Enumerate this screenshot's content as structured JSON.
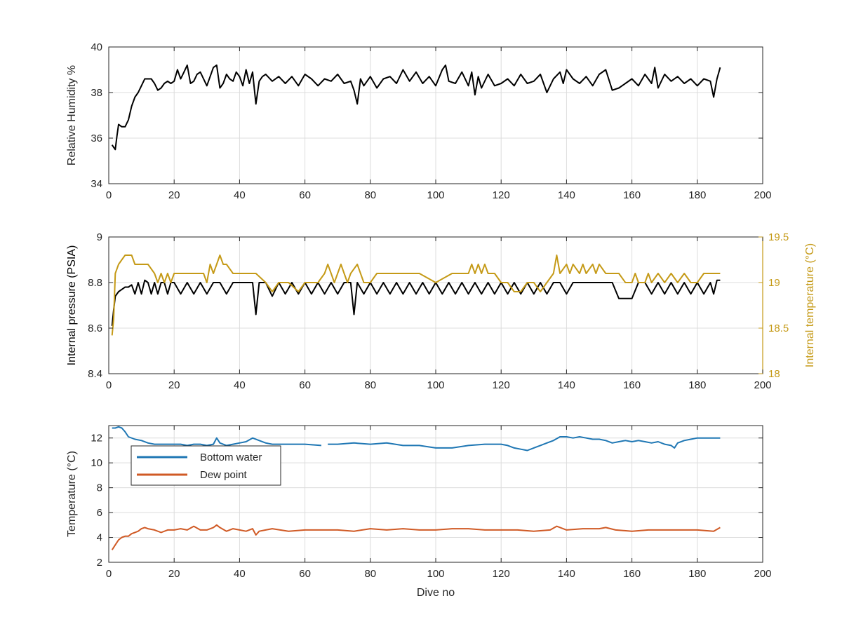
{
  "colors": {
    "black": "#000000",
    "gold": "#c59a17",
    "blue": "#1f77b4",
    "orange": "#d05a25",
    "grid": "#dcdcdc",
    "axis": "#262626"
  },
  "chart_data": [
    {
      "type": "line",
      "xlabel": "",
      "ylabel": "Relative Humidity %",
      "xlim": [
        0,
        200
      ],
      "ylim": [
        34,
        40
      ],
      "xticks": [
        0,
        20,
        40,
        60,
        80,
        100,
        120,
        140,
        160,
        180,
        200
      ],
      "yticks": [
        34,
        36,
        38,
        40
      ],
      "grid": true,
      "series": [
        {
          "color": "#000000",
          "x": [
            1,
            1.5,
            2,
            2.5,
            3,
            4,
            5,
            6,
            7,
            8,
            9,
            10,
            11,
            12,
            13,
            14,
            15,
            16,
            17,
            18,
            19,
            20,
            21,
            22,
            23,
            24,
            25,
            26,
            27,
            28,
            29,
            30,
            31,
            32,
            33,
            34,
            35,
            36,
            37,
            38,
            39,
            40,
            41,
            42,
            43,
            44,
            45,
            46,
            47,
            48,
            50,
            52,
            54,
            56,
            58,
            60,
            62,
            64,
            66,
            68,
            70,
            72,
            74,
            75,
            76,
            77,
            78,
            80,
            82,
            84,
            86,
            88,
            90,
            92,
            94,
            96,
            98,
            100,
            102,
            103,
            104,
            106,
            108,
            110,
            111,
            112,
            113,
            114,
            116,
            118,
            120,
            122,
            124,
            126,
            128,
            130,
            132,
            134,
            136,
            138,
            139,
            140,
            142,
            144,
            146,
            148,
            150,
            152,
            154,
            156,
            158,
            160,
            162,
            164,
            166,
            167,
            168,
            170,
            172,
            174,
            176,
            178,
            180,
            182,
            184,
            185,
            186,
            187
          ],
          "y": [
            35.7,
            35.6,
            35.5,
            36.1,
            36.6,
            36.5,
            36.5,
            36.8,
            37.4,
            37.8,
            38.0,
            38.3,
            38.6,
            38.6,
            38.6,
            38.4,
            38.1,
            38.2,
            38.4,
            38.5,
            38.4,
            38.5,
            39.0,
            38.6,
            38.9,
            39.2,
            38.4,
            38.5,
            38.8,
            38.9,
            38.6,
            38.3,
            38.7,
            39.1,
            39.2,
            38.2,
            38.4,
            38.8,
            38.6,
            38.5,
            38.9,
            38.7,
            38.3,
            39.0,
            38.4,
            38.9,
            37.5,
            38.5,
            38.7,
            38.8,
            38.5,
            38.7,
            38.4,
            38.7,
            38.3,
            38.8,
            38.6,
            38.3,
            38.6,
            38.5,
            38.8,
            38.4,
            38.5,
            38.1,
            37.5,
            38.6,
            38.3,
            38.7,
            38.2,
            38.6,
            38.7,
            38.4,
            39.0,
            38.5,
            38.9,
            38.4,
            38.7,
            38.3,
            39.0,
            39.2,
            38.5,
            38.4,
            38.9,
            38.3,
            38.9,
            37.9,
            38.7,
            38.2,
            38.8,
            38.3,
            38.4,
            38.6,
            38.3,
            38.8,
            38.4,
            38.5,
            38.8,
            38.0,
            38.6,
            38.9,
            38.4,
            39.0,
            38.6,
            38.4,
            38.7,
            38.3,
            38.8,
            39.0,
            38.1,
            38.2,
            38.4,
            38.6,
            38.3,
            38.8,
            38.4,
            39.1,
            38.2,
            38.8,
            38.5,
            38.7,
            38.4,
            38.6,
            38.3,
            38.6,
            38.5,
            37.8,
            38.6,
            39.1
          ]
        }
      ]
    },
    {
      "type": "line",
      "xlabel": "",
      "ylabel": "Internal pressure (PSIA)",
      "ylabel_right": "Internal temperature (°C)",
      "xlim": [
        0,
        200
      ],
      "ylim": [
        8.4,
        9
      ],
      "ylim_right": [
        18,
        19.5
      ],
      "xticks": [
        0,
        20,
        40,
        60,
        80,
        100,
        120,
        140,
        160,
        180,
        200
      ],
      "yticks": [
        8.4,
        8.6,
        8.8,
        9
      ],
      "yticks_right": [
        18,
        18.5,
        19,
        19.5
      ],
      "grid": true,
      "series": [
        {
          "axis": "left",
          "color": "#000000",
          "x": [
            1,
            1.5,
            2,
            3,
            4,
            5,
            6,
            7,
            8,
            9,
            10,
            11,
            12,
            13,
            14,
            15,
            16,
            17,
            18,
            19,
            20,
            22,
            24,
            26,
            28,
            30,
            32,
            34,
            36,
            38,
            40,
            42,
            44,
            45,
            46,
            48,
            50,
            52,
            54,
            56,
            58,
            60,
            62,
            64,
            66,
            68,
            70,
            72,
            74,
            75,
            76,
            78,
            80,
            82,
            84,
            86,
            88,
            90,
            92,
            94,
            96,
            98,
            100,
            102,
            104,
            106,
            108,
            110,
            112,
            114,
            116,
            118,
            120,
            122,
            124,
            126,
            128,
            130,
            132,
            134,
            136,
            138,
            140,
            142,
            144,
            146,
            148,
            150,
            152,
            154,
            156,
            158,
            160,
            162,
            164,
            166,
            168,
            170,
            172,
            174,
            176,
            178,
            180,
            182,
            184,
            185,
            186,
            187
          ],
          "y": [
            8.61,
            8.68,
            8.74,
            8.76,
            8.77,
            8.78,
            8.78,
            8.79,
            8.75,
            8.8,
            8.75,
            8.81,
            8.8,
            8.75,
            8.8,
            8.75,
            8.8,
            8.8,
            8.75,
            8.8,
            8.8,
            8.75,
            8.8,
            8.75,
            8.8,
            8.75,
            8.8,
            8.8,
            8.75,
            8.8,
            8.8,
            8.8,
            8.8,
            8.66,
            8.8,
            8.8,
            8.74,
            8.8,
            8.75,
            8.8,
            8.75,
            8.8,
            8.75,
            8.8,
            8.75,
            8.8,
            8.75,
            8.8,
            8.8,
            8.66,
            8.8,
            8.75,
            8.8,
            8.75,
            8.8,
            8.75,
            8.8,
            8.75,
            8.8,
            8.75,
            8.8,
            8.75,
            8.8,
            8.75,
            8.8,
            8.75,
            8.8,
            8.75,
            8.8,
            8.75,
            8.8,
            8.75,
            8.8,
            8.75,
            8.8,
            8.75,
            8.8,
            8.75,
            8.8,
            8.75,
            8.8,
            8.8,
            8.75,
            8.8,
            8.8,
            8.8,
            8.8,
            8.8,
            8.8,
            8.8,
            8.73,
            8.73,
            8.73,
            8.8,
            8.8,
            8.75,
            8.8,
            8.75,
            8.8,
            8.75,
            8.8,
            8.75,
            8.8,
            8.75,
            8.8,
            8.75,
            8.81,
            8.81
          ]
        },
        {
          "axis": "right",
          "color": "#c59a17",
          "x": [
            1,
            1.5,
            2,
            3,
            4,
            5,
            6,
            7,
            8,
            10,
            12,
            14,
            15,
            16,
            17,
            18,
            19,
            20,
            22,
            25,
            28,
            29,
            30,
            31,
            32,
            33,
            34,
            35,
            36,
            38,
            40,
            45,
            48,
            50,
            52,
            55,
            58,
            60,
            62,
            64,
            66,
            67,
            68,
            69,
            70,
            71,
            72,
            73,
            74,
            76,
            78,
            80,
            82,
            85,
            90,
            95,
            100,
            105,
            108,
            110,
            111,
            112,
            113,
            114,
            115,
            116,
            118,
            120,
            122,
            124,
            126,
            128,
            130,
            132,
            134,
            136,
            137,
            138,
            140,
            141,
            142,
            144,
            145,
            146,
            148,
            149,
            150,
            152,
            154,
            156,
            158,
            160,
            161,
            162,
            164,
            165,
            166,
            168,
            170,
            172,
            174,
            176,
            178,
            180,
            182,
            184,
            187
          ],
          "y": [
            18.42,
            18.6,
            19.1,
            19.2,
            19.25,
            19.3,
            19.3,
            19.3,
            19.2,
            19.2,
            19.2,
            19.1,
            19.0,
            19.1,
            19.0,
            19.1,
            19.0,
            19.1,
            19.1,
            19.1,
            19.1,
            19.1,
            19.0,
            19.2,
            19.1,
            19.2,
            19.3,
            19.2,
            19.2,
            19.1,
            19.1,
            19.1,
            19.0,
            18.9,
            19.0,
            19.0,
            18.9,
            19.0,
            19.0,
            19.0,
            19.1,
            19.2,
            19.1,
            19.0,
            19.1,
            19.2,
            19.1,
            19.0,
            19.1,
            19.2,
            19.0,
            19.0,
            19.1,
            19.1,
            19.1,
            19.1,
            19.0,
            19.1,
            19.1,
            19.1,
            19.2,
            19.1,
            19.2,
            19.1,
            19.2,
            19.1,
            19.1,
            19.0,
            19.0,
            18.9,
            18.9,
            19.0,
            19.0,
            18.9,
            19.0,
            19.1,
            19.3,
            19.1,
            19.2,
            19.1,
            19.2,
            19.1,
            19.2,
            19.1,
            19.2,
            19.1,
            19.2,
            19.1,
            19.1,
            19.1,
            19.0,
            19.0,
            19.1,
            19.0,
            19.0,
            19.1,
            19.0,
            19.1,
            19.0,
            19.1,
            19.0,
            19.1,
            19.0,
            19.0,
            19.1,
            19.1,
            19.1
          ]
        }
      ]
    },
    {
      "type": "line",
      "xlabel": "Dive no",
      "ylabel": "Temperature (°C)",
      "xlim": [
        0,
        200
      ],
      "ylim": [
        2,
        13
      ],
      "xticks": [
        0,
        20,
        40,
        60,
        80,
        100,
        120,
        140,
        160,
        180,
        200
      ],
      "yticks": [
        2,
        4,
        6,
        8,
        10,
        12
      ],
      "grid": true,
      "legend": "top-left",
      "series": [
        {
          "name": "Bottom water",
          "color": "#1f77b4",
          "x": [
            1,
            2,
            3,
            4,
            5,
            6,
            8,
            10,
            12,
            14,
            16,
            18,
            20,
            22,
            24,
            26,
            28,
            30,
            32,
            33,
            34,
            36,
            38,
            40,
            42,
            44,
            46,
            48,
            50,
            55,
            60,
            65,
            66,
            67,
            68,
            70,
            75,
            80,
            85,
            90,
            95,
            100,
            105,
            110,
            115,
            120,
            122,
            124,
            126,
            128,
            130,
            132,
            134,
            136,
            138,
            140,
            142,
            144,
            146,
            148,
            150,
            152,
            154,
            156,
            158,
            160,
            162,
            164,
            166,
            168,
            170,
            172,
            173,
            174,
            176,
            178,
            180,
            182,
            184,
            187
          ],
          "y": [
            12.8,
            12.8,
            12.9,
            12.8,
            12.5,
            12.1,
            11.9,
            11.8,
            11.6,
            11.5,
            11.5,
            11.5,
            11.5,
            11.5,
            11.4,
            11.5,
            11.5,
            11.4,
            11.5,
            12.0,
            11.6,
            11.4,
            11.5,
            11.6,
            11.7,
            12.0,
            11.8,
            11.6,
            11.5,
            11.5,
            11.5,
            11.4,
            null,
            11.5,
            11.5,
            11.5,
            11.6,
            11.5,
            11.6,
            11.4,
            11.4,
            11.2,
            11.2,
            11.4,
            11.5,
            11.5,
            11.4,
            11.2,
            11.1,
            11.0,
            11.2,
            11.4,
            11.6,
            11.8,
            12.1,
            12.1,
            12.0,
            12.1,
            12.0,
            11.9,
            11.9,
            11.8,
            11.6,
            11.7,
            11.8,
            11.7,
            11.8,
            11.7,
            11.6,
            11.7,
            11.5,
            11.4,
            11.2,
            11.6,
            11.8,
            11.9,
            12.0,
            12.0,
            12.0,
            12.0
          ]
        },
        {
          "name": "Dew point",
          "color": "#d05a25",
          "x": [
            1,
            2,
            3,
            4,
            5,
            6,
            7,
            8,
            9,
            10,
            11,
            12,
            14,
            16,
            18,
            20,
            22,
            24,
            26,
            28,
            30,
            32,
            33,
            34,
            36,
            38,
            40,
            42,
            44,
            45,
            46,
            48,
            50,
            55,
            60,
            65,
            70,
            75,
            80,
            85,
            90,
            95,
            100,
            105,
            110,
            115,
            120,
            125,
            130,
            135,
            137,
            140,
            145,
            150,
            152,
            155,
            160,
            165,
            170,
            175,
            180,
            185,
            187
          ],
          "y": [
            3.0,
            3.4,
            3.8,
            4.0,
            4.1,
            4.1,
            4.3,
            4.4,
            4.5,
            4.7,
            4.8,
            4.7,
            4.6,
            4.4,
            4.6,
            4.6,
            4.7,
            4.6,
            4.9,
            4.6,
            4.6,
            4.8,
            5.0,
            4.8,
            4.5,
            4.7,
            4.6,
            4.5,
            4.7,
            4.2,
            4.5,
            4.6,
            4.7,
            4.5,
            4.6,
            4.6,
            4.6,
            4.5,
            4.7,
            4.6,
            4.7,
            4.6,
            4.6,
            4.7,
            4.7,
            4.6,
            4.6,
            4.6,
            4.5,
            4.6,
            4.9,
            4.6,
            4.7,
            4.7,
            4.8,
            4.6,
            4.5,
            4.6,
            4.6,
            4.6,
            4.6,
            4.5,
            4.8
          ]
        }
      ]
    }
  ]
}
